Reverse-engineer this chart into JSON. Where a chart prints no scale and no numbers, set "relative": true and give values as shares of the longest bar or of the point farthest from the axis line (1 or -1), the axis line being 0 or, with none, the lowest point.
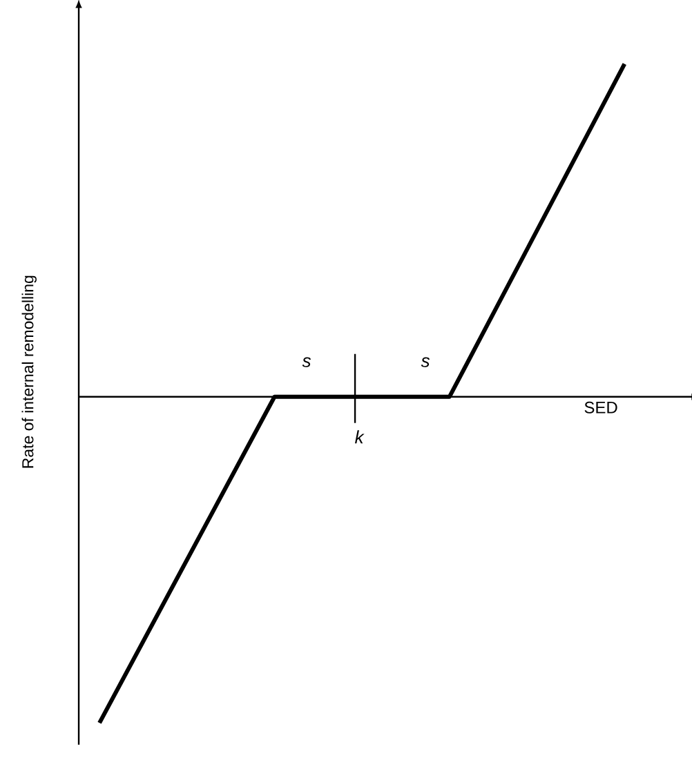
{
  "chart_data": {
    "type": "line",
    "relative": true,
    "categories": [
      null,
      null,
      null,
      null
    ],
    "xlabel": "SED",
    "ylabel": "Rate of internal remodelling",
    "series": [
      {
        "color": "#000000",
        "values": [
          -0.98,
          0,
          0,
          1
        ]
      }
    ],
    "annotations": [
      "s",
      "s",
      "k"
    ],
    "marker": "none",
    "line_style": "solid"
  }
}
